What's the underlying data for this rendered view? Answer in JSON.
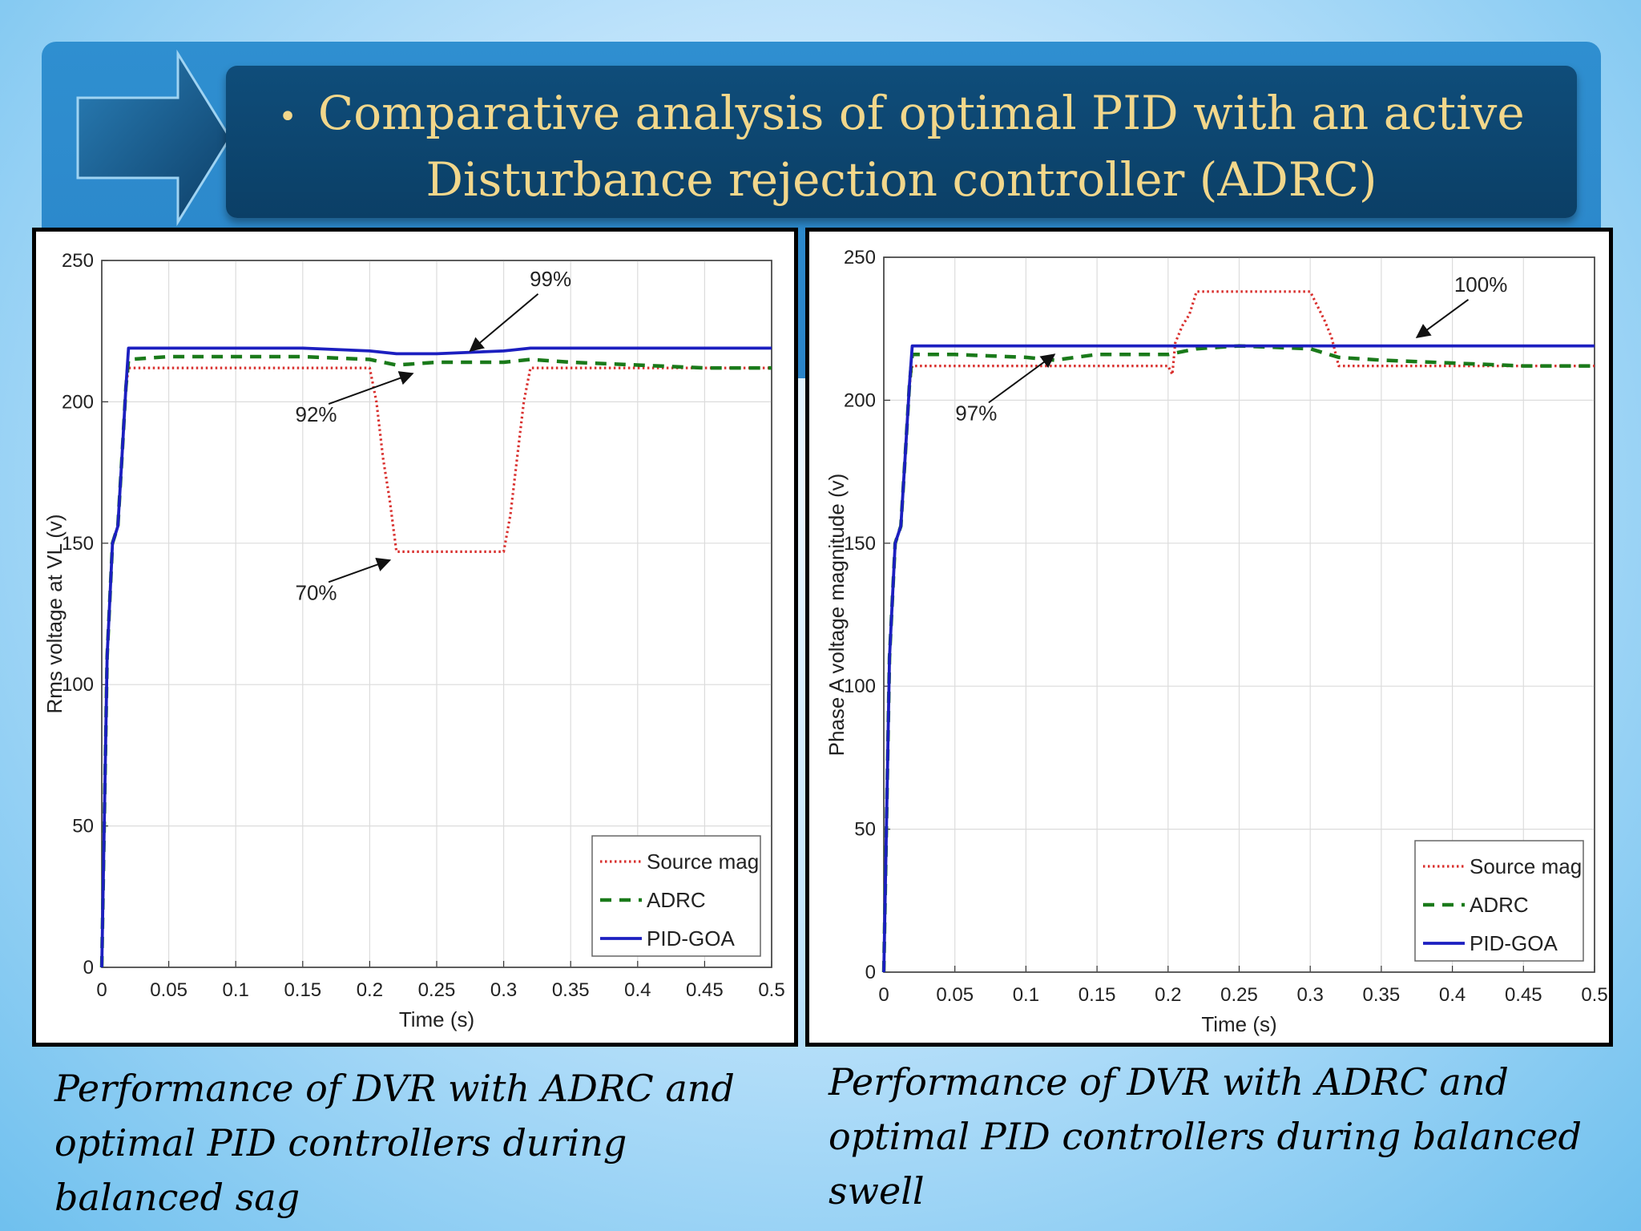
{
  "slide": {
    "title_line1": "Comparative analysis of optimal PID with an active",
    "title_line2": "Disturbance rejection controller (ADRC)",
    "caption_left": "Performance of DVR with ADRC and optimal PID controllers during balanced sag",
    "caption_left_line1": "Performance of DVR with ADRC and",
    "caption_left_line2": "optimal PID controllers during balanced sag",
    "caption_right_line1": "Performance of DVR with ADRC and",
    "caption_right_line2": "optimal PID controllers during balanced swell"
  },
  "colors": {
    "source": "#d9302e",
    "adrc": "#1a7a1a",
    "pid": "#1c1fc0",
    "title": "#f2d78b"
  },
  "chart_data": [
    {
      "type": "line",
      "title": "",
      "xlabel": "Time (s)",
      "ylabel": "Rms voltage at VL (v)",
      "xlim": [
        0,
        0.5
      ],
      "ylim": [
        0,
        250
      ],
      "xticks": [
        "0",
        "0.05",
        "0.1",
        "0.15",
        "0.2",
        "0.25",
        "0.3",
        "0.35",
        "0.4",
        "0.45",
        "0.5"
      ],
      "yticks": [
        "0",
        "50",
        "100",
        "150",
        "200",
        "250"
      ],
      "legend": [
        "Source mag",
        "ADRC",
        "PID-GOA"
      ],
      "legend_position": "bottom-right",
      "grid": true,
      "annotations": [
        {
          "text": "99%",
          "x": 0.335,
          "y": 241,
          "ax": 0.275,
          "ay": 218
        },
        {
          "text": "92%",
          "x": 0.16,
          "y": 193,
          "ax": 0.232,
          "ay": 210
        },
        {
          "text": "70%",
          "x": 0.16,
          "y": 130,
          "ax": 0.215,
          "ay": 144
        }
      ],
      "series": [
        {
          "name": "Source mag",
          "style": "dotted",
          "x": [
            0,
            0.004,
            0.008,
            0.012,
            0.015,
            0.018,
            0.02,
            0.2,
            0.205,
            0.21,
            0.215,
            0.22,
            0.3,
            0.305,
            0.31,
            0.315,
            0.32,
            0.5
          ],
          "y": [
            0,
            110,
            150,
            156,
            180,
            205,
            212,
            212,
            200,
            180,
            165,
            147,
            147,
            160,
            180,
            200,
            212,
            212
          ]
        },
        {
          "name": "ADRC",
          "style": "dashed",
          "x": [
            0,
            0.004,
            0.008,
            0.012,
            0.015,
            0.018,
            0.02,
            0.05,
            0.1,
            0.15,
            0.2,
            0.22,
            0.25,
            0.3,
            0.32,
            0.35,
            0.4,
            0.45,
            0.5
          ],
          "y": [
            0,
            110,
            150,
            156,
            180,
            205,
            215,
            216,
            216,
            216,
            215,
            213,
            214,
            214,
            215,
            214,
            213,
            212,
            212
          ]
        },
        {
          "name": "PID-GOA",
          "style": "solid",
          "x": [
            0,
            0.004,
            0.008,
            0.012,
            0.015,
            0.018,
            0.02,
            0.05,
            0.1,
            0.15,
            0.2,
            0.22,
            0.25,
            0.3,
            0.32,
            0.35,
            0.4,
            0.45,
            0.5
          ],
          "y": [
            0,
            110,
            150,
            156,
            180,
            205,
            219,
            219,
            219,
            219,
            218,
            217,
            217,
            218,
            219,
            219,
            219,
            219,
            219
          ]
        }
      ]
    },
    {
      "type": "line",
      "title": "",
      "xlabel": "Time (s)",
      "ylabel": "Phase A voltage magnitude (v)",
      "xlim": [
        0,
        0.5
      ],
      "ylim": [
        0,
        250
      ],
      "xticks": [
        "0",
        "0.05",
        "0.1",
        "0.15",
        "0.2",
        "0.25",
        "0.3",
        "0.35",
        "0.4",
        "0.45",
        "0.5"
      ],
      "yticks": [
        "0",
        "50",
        "100",
        "150",
        "200",
        "250"
      ],
      "legend": [
        "Source mag",
        "ADRC",
        "PID-GOA"
      ],
      "legend_position": "bottom-right",
      "grid": true,
      "annotations": [
        {
          "text": "100%",
          "x": 0.42,
          "y": 238,
          "ax": 0.375,
          "ay": 222
        },
        {
          "text": "97%",
          "x": 0.065,
          "y": 193,
          "ax": 0.12,
          "ay": 216
        }
      ],
      "series": [
        {
          "name": "Source mag",
          "style": "dotted",
          "x": [
            0,
            0.004,
            0.008,
            0.012,
            0.015,
            0.018,
            0.02,
            0.2,
            0.203,
            0.205,
            0.21,
            0.215,
            0.22,
            0.3,
            0.305,
            0.31,
            0.315,
            0.32,
            0.5
          ],
          "y": [
            0,
            110,
            150,
            156,
            180,
            205,
            212,
            212,
            209,
            220,
            226,
            230,
            238,
            238,
            233,
            228,
            222,
            212,
            212
          ]
        },
        {
          "name": "ADRC",
          "style": "dashed",
          "x": [
            0,
            0.004,
            0.008,
            0.012,
            0.015,
            0.018,
            0.02,
            0.05,
            0.1,
            0.12,
            0.15,
            0.2,
            0.22,
            0.25,
            0.3,
            0.32,
            0.35,
            0.4,
            0.45,
            0.5
          ],
          "y": [
            0,
            110,
            150,
            156,
            180,
            205,
            216,
            216,
            215,
            214,
            216,
            216,
            218,
            219,
            218,
            215,
            214,
            213,
            212,
            212
          ]
        },
        {
          "name": "PID-GOA",
          "style": "solid",
          "x": [
            0,
            0.004,
            0.008,
            0.012,
            0.015,
            0.018,
            0.02,
            0.05,
            0.1,
            0.15,
            0.2,
            0.22,
            0.25,
            0.3,
            0.32,
            0.35,
            0.4,
            0.45,
            0.5
          ],
          "y": [
            0,
            110,
            150,
            156,
            180,
            205,
            219,
            219,
            219,
            219,
            219,
            219,
            219,
            219,
            219,
            219,
            219,
            219,
            219
          ]
        }
      ]
    }
  ]
}
